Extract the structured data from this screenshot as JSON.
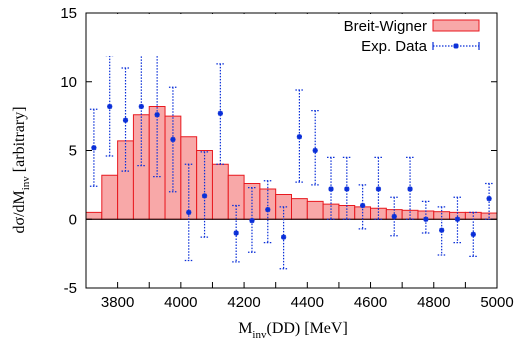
{
  "chart_data": {
    "type": "bar",
    "title": "",
    "xlabel": {
      "main": "M",
      "sub": "inv",
      "rest": "(DD) [MeV]"
    },
    "ylabel": {
      "main": "dσ/dM",
      "sub": "inv",
      "rest": " [arbitrary]"
    },
    "xlim": [
      3700,
      5000
    ],
    "ylim": [
      -5,
      15
    ],
    "xticks": [
      3800,
      3900,
      4000,
      4100,
      4200,
      4300,
      4400,
      4500,
      4600,
      4700,
      4800,
      4900,
      5000
    ],
    "xtick_labels": [
      "3800",
      "",
      "4000",
      "",
      "4200",
      "",
      "4400",
      "",
      "4600",
      "",
      "4800",
      "",
      "5000"
    ],
    "yticks": [
      -5,
      0,
      5,
      10,
      15
    ],
    "ytick_labels": [
      "-5",
      "0",
      "5",
      "10",
      "15"
    ],
    "legend_position": "top-right",
    "series": [
      {
        "name": "Breit-Wigner",
        "kind": "histogram",
        "color": "#e8191f",
        "fill": "#f8a8a8",
        "bin_width": 50,
        "x": [
          3700,
          3750,
          3800,
          3850,
          3900,
          3950,
          4000,
          4050,
          4100,
          4150,
          4200,
          4250,
          4300,
          4350,
          4400,
          4450,
          4500,
          4550,
          4600,
          4650,
          4700,
          4750,
          4800,
          4850,
          4900,
          4950
        ],
        "values": [
          0.5,
          3.2,
          5.7,
          7.6,
          8.2,
          7.5,
          6.0,
          5.0,
          4.0,
          3.2,
          2.6,
          2.2,
          1.8,
          1.5,
          1.3,
          1.1,
          1.0,
          0.9,
          0.8,
          0.7,
          0.65,
          0.6,
          0.55,
          0.5,
          0.5,
          0.45
        ]
      },
      {
        "name": "Exp. Data",
        "kind": "errorbar",
        "color": "#0a2fd8",
        "points": [
          {
            "x": 3725,
            "y": 5.2,
            "lo": 2.4,
            "hi": 8.0
          },
          {
            "x": 3775,
            "y": 8.2,
            "lo": 4.6,
            "hi": 11.9
          },
          {
            "x": 3825,
            "y": 7.2,
            "lo": 3.5,
            "hi": 11.0
          },
          {
            "x": 3875,
            "y": 8.2,
            "lo": 3.9,
            "hi": 12.5
          },
          {
            "x": 3925,
            "y": 7.6,
            "lo": 3.1,
            "hi": 12.3
          },
          {
            "x": 3975,
            "y": 5.8,
            "lo": 2.0,
            "hi": 9.6
          },
          {
            "x": 4025,
            "y": 0.5,
            "lo": -3.0,
            "hi": 4.0
          },
          {
            "x": 4075,
            "y": 1.7,
            "lo": -1.3,
            "hi": 4.9
          },
          {
            "x": 4125,
            "y": 7.7,
            "lo": 4.0,
            "hi": 11.3
          },
          {
            "x": 4175,
            "y": -1.0,
            "lo": -3.1,
            "hi": 1.0
          },
          {
            "x": 4225,
            "y": -0.1,
            "lo": -2.4,
            "hi": 2.3
          },
          {
            "x": 4275,
            "y": 0.7,
            "lo": -1.7,
            "hi": 2.8
          },
          {
            "x": 4325,
            "y": -1.3,
            "lo": -3.6,
            "hi": 0.9
          },
          {
            "x": 4375,
            "y": 6.0,
            "lo": 2.7,
            "hi": 9.4
          },
          {
            "x": 4425,
            "y": 5.0,
            "lo": 2.5,
            "hi": 7.9
          },
          {
            "x": 4475,
            "y": 2.2,
            "lo": 0.0,
            "hi": 4.5
          },
          {
            "x": 4525,
            "y": 2.2,
            "lo": 0.0,
            "hi": 4.5
          },
          {
            "x": 4575,
            "y": 1.0,
            "lo": -0.7,
            "hi": 2.5
          },
          {
            "x": 4625,
            "y": 2.2,
            "lo": 0.0,
            "hi": 4.5
          },
          {
            "x": 4675,
            "y": 0.2,
            "lo": -1.2,
            "hi": 1.6
          },
          {
            "x": 4725,
            "y": 2.2,
            "lo": 0.0,
            "hi": 4.5
          },
          {
            "x": 4775,
            "y": 0.0,
            "lo": -1.0,
            "hi": 1.3
          },
          {
            "x": 4825,
            "y": -0.8,
            "lo": -2.6,
            "hi": 0.9
          },
          {
            "x": 4875,
            "y": 0.0,
            "lo": -1.7,
            "hi": 1.6
          },
          {
            "x": 4925,
            "y": -1.1,
            "lo": -2.7,
            "hi": 0.5
          },
          {
            "x": 4975,
            "y": 1.5,
            "lo": 0.0,
            "hi": 2.6
          }
        ]
      }
    ]
  }
}
